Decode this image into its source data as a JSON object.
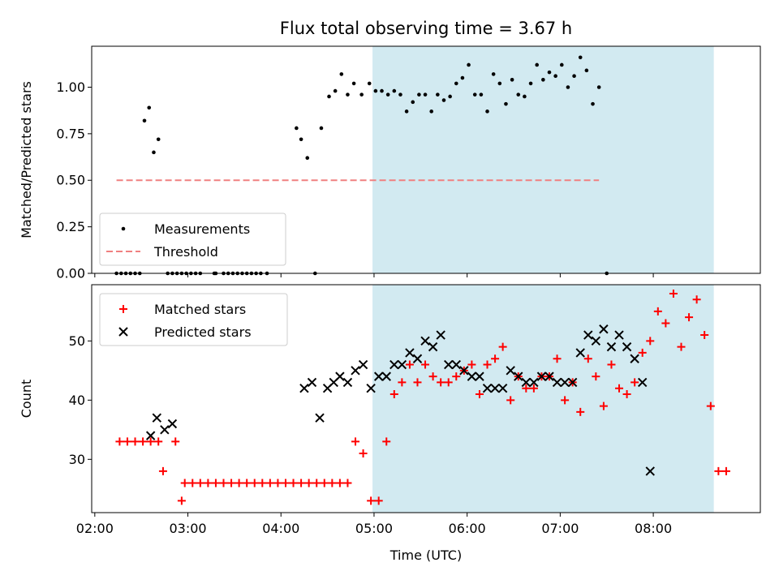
{
  "chart_data": {
    "type": "scatter",
    "title": "Flux total observing time = 3.67 h",
    "xlabel": "Time (UTC)",
    "x_unit": "minutes after 00:00 UTC",
    "xlim": [
      118,
      549
    ],
    "xticks": [
      {
        "value": 120,
        "label": "02:00"
      },
      {
        "value": 180,
        "label": "03:00"
      },
      {
        "value": 240,
        "label": "04:00"
      },
      {
        "value": 300,
        "label": "05:00"
      },
      {
        "value": 360,
        "label": "06:00"
      },
      {
        "value": 420,
        "label": "07:00"
      },
      {
        "value": 480,
        "label": "08:00"
      }
    ],
    "shaded_interval": {
      "x": [
        299,
        519
      ],
      "color": "#add8e6"
    },
    "panels": [
      {
        "id": "ratio",
        "ylabel": "Matched/Predicted stars",
        "ylim": [
          0,
          1.22
        ],
        "yticks": [
          {
            "value": 0,
            "label": "0.00"
          },
          {
            "value": 0.25,
            "label": "0.25"
          },
          {
            "value": 0.5,
            "label": "0.50"
          },
          {
            "value": 0.75,
            "label": "0.75"
          },
          {
            "value": 1.0,
            "label": "1.00"
          }
        ],
        "legend": {
          "position": "lower-left"
        },
        "series": [
          {
            "name": "Measurements",
            "marker": "dot",
            "color": "#000000",
            "points": [
              [
                134,
                0
              ],
              [
                137,
                0
              ],
              [
                140,
                0
              ],
              [
                143,
                0
              ],
              [
                146,
                0
              ],
              [
                149,
                0
              ],
              [
                152,
                0.82
              ],
              [
                155,
                0.89
              ],
              [
                158,
                0.65
              ],
              [
                161,
                0.72
              ],
              [
                167,
                0
              ],
              [
                170,
                0
              ],
              [
                173,
                0
              ],
              [
                176,
                0
              ],
              [
                179,
                0
              ],
              [
                182,
                0
              ],
              [
                185,
                0
              ],
              [
                188,
                0
              ],
              [
                197,
                0
              ],
              [
                198,
                0
              ],
              [
                203,
                0
              ],
              [
                206,
                0
              ],
              [
                209,
                0
              ],
              [
                212,
                0
              ],
              [
                215,
                0
              ],
              [
                218,
                0
              ],
              [
                221,
                0
              ],
              [
                224,
                0
              ],
              [
                227,
                0
              ],
              [
                231,
                0
              ],
              [
                250,
                0.78
              ],
              [
                253,
                0.72
              ],
              [
                257,
                0.62
              ],
              [
                262,
                0
              ],
              [
                266,
                0.78
              ],
              [
                271,
                0.95
              ],
              [
                275,
                0.98
              ],
              [
                279,
                1.07
              ],
              [
                283,
                0.96
              ],
              [
                287,
                1.02
              ],
              [
                292,
                0.96
              ],
              [
                297,
                1.02
              ],
              [
                301,
                0.98
              ],
              [
                305,
                0.98
              ],
              [
                309,
                0.96
              ],
              [
                313,
                0.98
              ],
              [
                317,
                0.96
              ],
              [
                321,
                0.87
              ],
              [
                325,
                0.92
              ],
              [
                329,
                0.96
              ],
              [
                333,
                0.96
              ],
              [
                337,
                0.87
              ],
              [
                341,
                0.96
              ],
              [
                345,
                0.93
              ],
              [
                349,
                0.95
              ],
              [
                353,
                1.02
              ],
              [
                357,
                1.05
              ],
              [
                361,
                1.12
              ],
              [
                365,
                0.96
              ],
              [
                369,
                0.96
              ],
              [
                373,
                0.87
              ],
              [
                377,
                1.07
              ],
              [
                381,
                1.02
              ],
              [
                385,
                0.91
              ],
              [
                389,
                1.04
              ],
              [
                393,
                0.96
              ],
              [
                397,
                0.95
              ],
              [
                401,
                1.02
              ],
              [
                405,
                1.12
              ],
              [
                409,
                1.04
              ],
              [
                413,
                1.08
              ],
              [
                417,
                1.06
              ],
              [
                421,
                1.12
              ],
              [
                425,
                1.0
              ],
              [
                429,
                1.06
              ],
              [
                433,
                1.16
              ],
              [
                437,
                1.09
              ],
              [
                441,
                0.91
              ],
              [
                445,
                1.0
              ],
              [
                450,
                0
              ]
            ]
          },
          {
            "name": "Threshold",
            "marker": "dashed-line",
            "color": "#f08080",
            "points": [
              [
                134,
                0.5
              ],
              [
                445,
                0.5
              ]
            ]
          }
        ]
      },
      {
        "id": "counts",
        "ylabel": "Count",
        "ylim": [
          21,
          59.5
        ],
        "yticks": [
          {
            "value": 30,
            "label": "30"
          },
          {
            "value": 40,
            "label": "40"
          },
          {
            "value": 50,
            "label": "50"
          }
        ],
        "legend": {
          "position": "upper-left"
        },
        "series": [
          {
            "name": "Matched stars",
            "marker": "plus",
            "color": "#ff0000",
            "points": [
              [
                136,
                33
              ],
              [
                141,
                33
              ],
              [
                146,
                33
              ],
              [
                151,
                33
              ],
              [
                156,
                33
              ],
              [
                161,
                33
              ],
              [
                164,
                28
              ],
              [
                172,
                33
              ],
              [
                176,
                23
              ],
              [
                178,
                26
              ],
              [
                183,
                26
              ],
              [
                188,
                26
              ],
              [
                193,
                26
              ],
              [
                198,
                26
              ],
              [
                203,
                26
              ],
              [
                208,
                26
              ],
              [
                213,
                26
              ],
              [
                218,
                26
              ],
              [
                223,
                26
              ],
              [
                228,
                26
              ],
              [
                233,
                26
              ],
              [
                238,
                26
              ],
              [
                243,
                26
              ],
              [
                248,
                26
              ],
              [
                253,
                26
              ],
              [
                258,
                26
              ],
              [
                263,
                26
              ],
              [
                268,
                26
              ],
              [
                273,
                26
              ],
              [
                278,
                26
              ],
              [
                283,
                26
              ],
              [
                288,
                33
              ],
              [
                293,
                31
              ],
              [
                298,
                23
              ],
              [
                303,
                23
              ],
              [
                308,
                33
              ],
              [
                313,
                41
              ],
              [
                318,
                43
              ],
              [
                323,
                46
              ],
              [
                328,
                43
              ],
              [
                333,
                46
              ],
              [
                338,
                44
              ],
              [
                343,
                43
              ],
              [
                348,
                43
              ],
              [
                353,
                44
              ],
              [
                358,
                45
              ],
              [
                363,
                46
              ],
              [
                368,
                41
              ],
              [
                373,
                46
              ],
              [
                378,
                47
              ],
              [
                383,
                49
              ],
              [
                388,
                40
              ],
              [
                393,
                44
              ],
              [
                398,
                42
              ],
              [
                403,
                42
              ],
              [
                408,
                44
              ],
              [
                413,
                44
              ],
              [
                418,
                47
              ],
              [
                423,
                40
              ],
              [
                428,
                43
              ],
              [
                433,
                38
              ],
              [
                438,
                47
              ],
              [
                443,
                44
              ],
              [
                448,
                39
              ],
              [
                453,
                46
              ],
              [
                458,
                42
              ],
              [
                463,
                41
              ],
              [
                468,
                43
              ],
              [
                473,
                48
              ],
              [
                478,
                50
              ],
              [
                483,
                55
              ],
              [
                488,
                53
              ],
              [
                493,
                58
              ],
              [
                498,
                49
              ],
              [
                503,
                54
              ],
              [
                508,
                57
              ],
              [
                513,
                51
              ],
              [
                517,
                39
              ],
              [
                522,
                28
              ],
              [
                527,
                28
              ]
            ]
          },
          {
            "name": "Predicted stars",
            "marker": "cross",
            "color": "#000000",
            "points": [
              [
                156,
                34
              ],
              [
                160,
                37
              ],
              [
                165,
                35
              ],
              [
                170,
                36
              ],
              [
                255,
                42
              ],
              [
                260,
                43
              ],
              [
                265,
                37
              ],
              [
                270,
                42
              ],
              [
                274,
                43
              ],
              [
                278,
                44
              ],
              [
                283,
                43
              ],
              [
                288,
                45
              ],
              [
                293,
                46
              ],
              [
                298,
                42
              ],
              [
                303,
                44
              ],
              [
                308,
                44
              ],
              [
                313,
                46
              ],
              [
                318,
                46
              ],
              [
                323,
                48
              ],
              [
                328,
                47
              ],
              [
                333,
                50
              ],
              [
                338,
                49
              ],
              [
                343,
                51
              ],
              [
                348,
                46
              ],
              [
                353,
                46
              ],
              [
                358,
                45
              ],
              [
                363,
                44
              ],
              [
                368,
                44
              ],
              [
                373,
                42
              ],
              [
                378,
                42
              ],
              [
                383,
                42
              ],
              [
                388,
                45
              ],
              [
                393,
                44
              ],
              [
                398,
                43
              ],
              [
                403,
                43
              ],
              [
                408,
                44
              ],
              [
                413,
                44
              ],
              [
                418,
                43
              ],
              [
                423,
                43
              ],
              [
                428,
                43
              ],
              [
                433,
                48
              ],
              [
                438,
                51
              ],
              [
                443,
                50
              ],
              [
                448,
                52
              ],
              [
                453,
                49
              ],
              [
                458,
                51
              ],
              [
                463,
                49
              ],
              [
                468,
                47
              ],
              [
                473,
                43
              ],
              [
                478,
                28
              ]
            ]
          }
        ]
      }
    ]
  }
}
